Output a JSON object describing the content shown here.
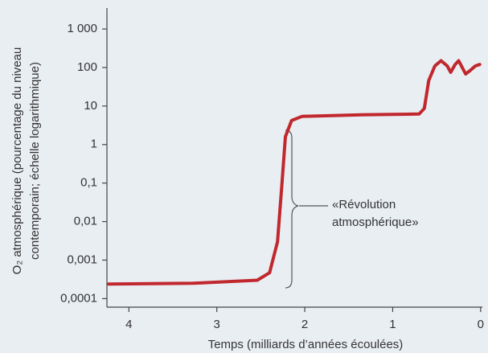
{
  "chart_data": {
    "type": "line",
    "ylabel": [
      "O₂ atmosphérique (pourcentage du niveau",
      "contemporain; échelle logarithmique)"
    ],
    "xlabel": "Temps (milliards d’années écoulées)",
    "annotation": [
      "«Révolution",
      "atmosphérique»"
    ],
    "x": [
      4.23,
      3.27,
      2.54,
      2.4,
      2.31,
      2.26,
      2.22,
      2.15,
      2.03,
      1.35,
      0.7,
      0.64,
      0.59,
      0.52,
      0.45,
      0.38,
      0.34,
      0.29,
      0.25,
      0.17,
      0.12,
      0.06,
      0.01
    ],
    "series": [
      {
        "name": "O2",
        "color": "#c0282d",
        "values": [
          0.00024,
          0.00025,
          0.0003,
          0.00047,
          0.003,
          0.09,
          1.6,
          4.2,
          5.4,
          5.9,
          6.2,
          8.7,
          46,
          110,
          150,
          110,
          75,
          120,
          150,
          68,
          83,
          110,
          120
        ]
      }
    ],
    "xlim": [
      4.25,
      -0.02
    ],
    "xticks": [
      4,
      3,
      2,
      1,
      0
    ],
    "ylim": [
      6e-05,
      3500
    ],
    "ylog": true,
    "yticks": [
      {
        "value": 0.0001,
        "label": "0,0001"
      },
      {
        "value": 0.001,
        "label": "0,001"
      },
      {
        "value": 0.01,
        "label": "0,01"
      },
      {
        "value": 0.1,
        "label": "0,1"
      },
      1,
      10,
      100,
      {
        "value": 1000,
        "label": "1 000"
      }
    ]
  }
}
